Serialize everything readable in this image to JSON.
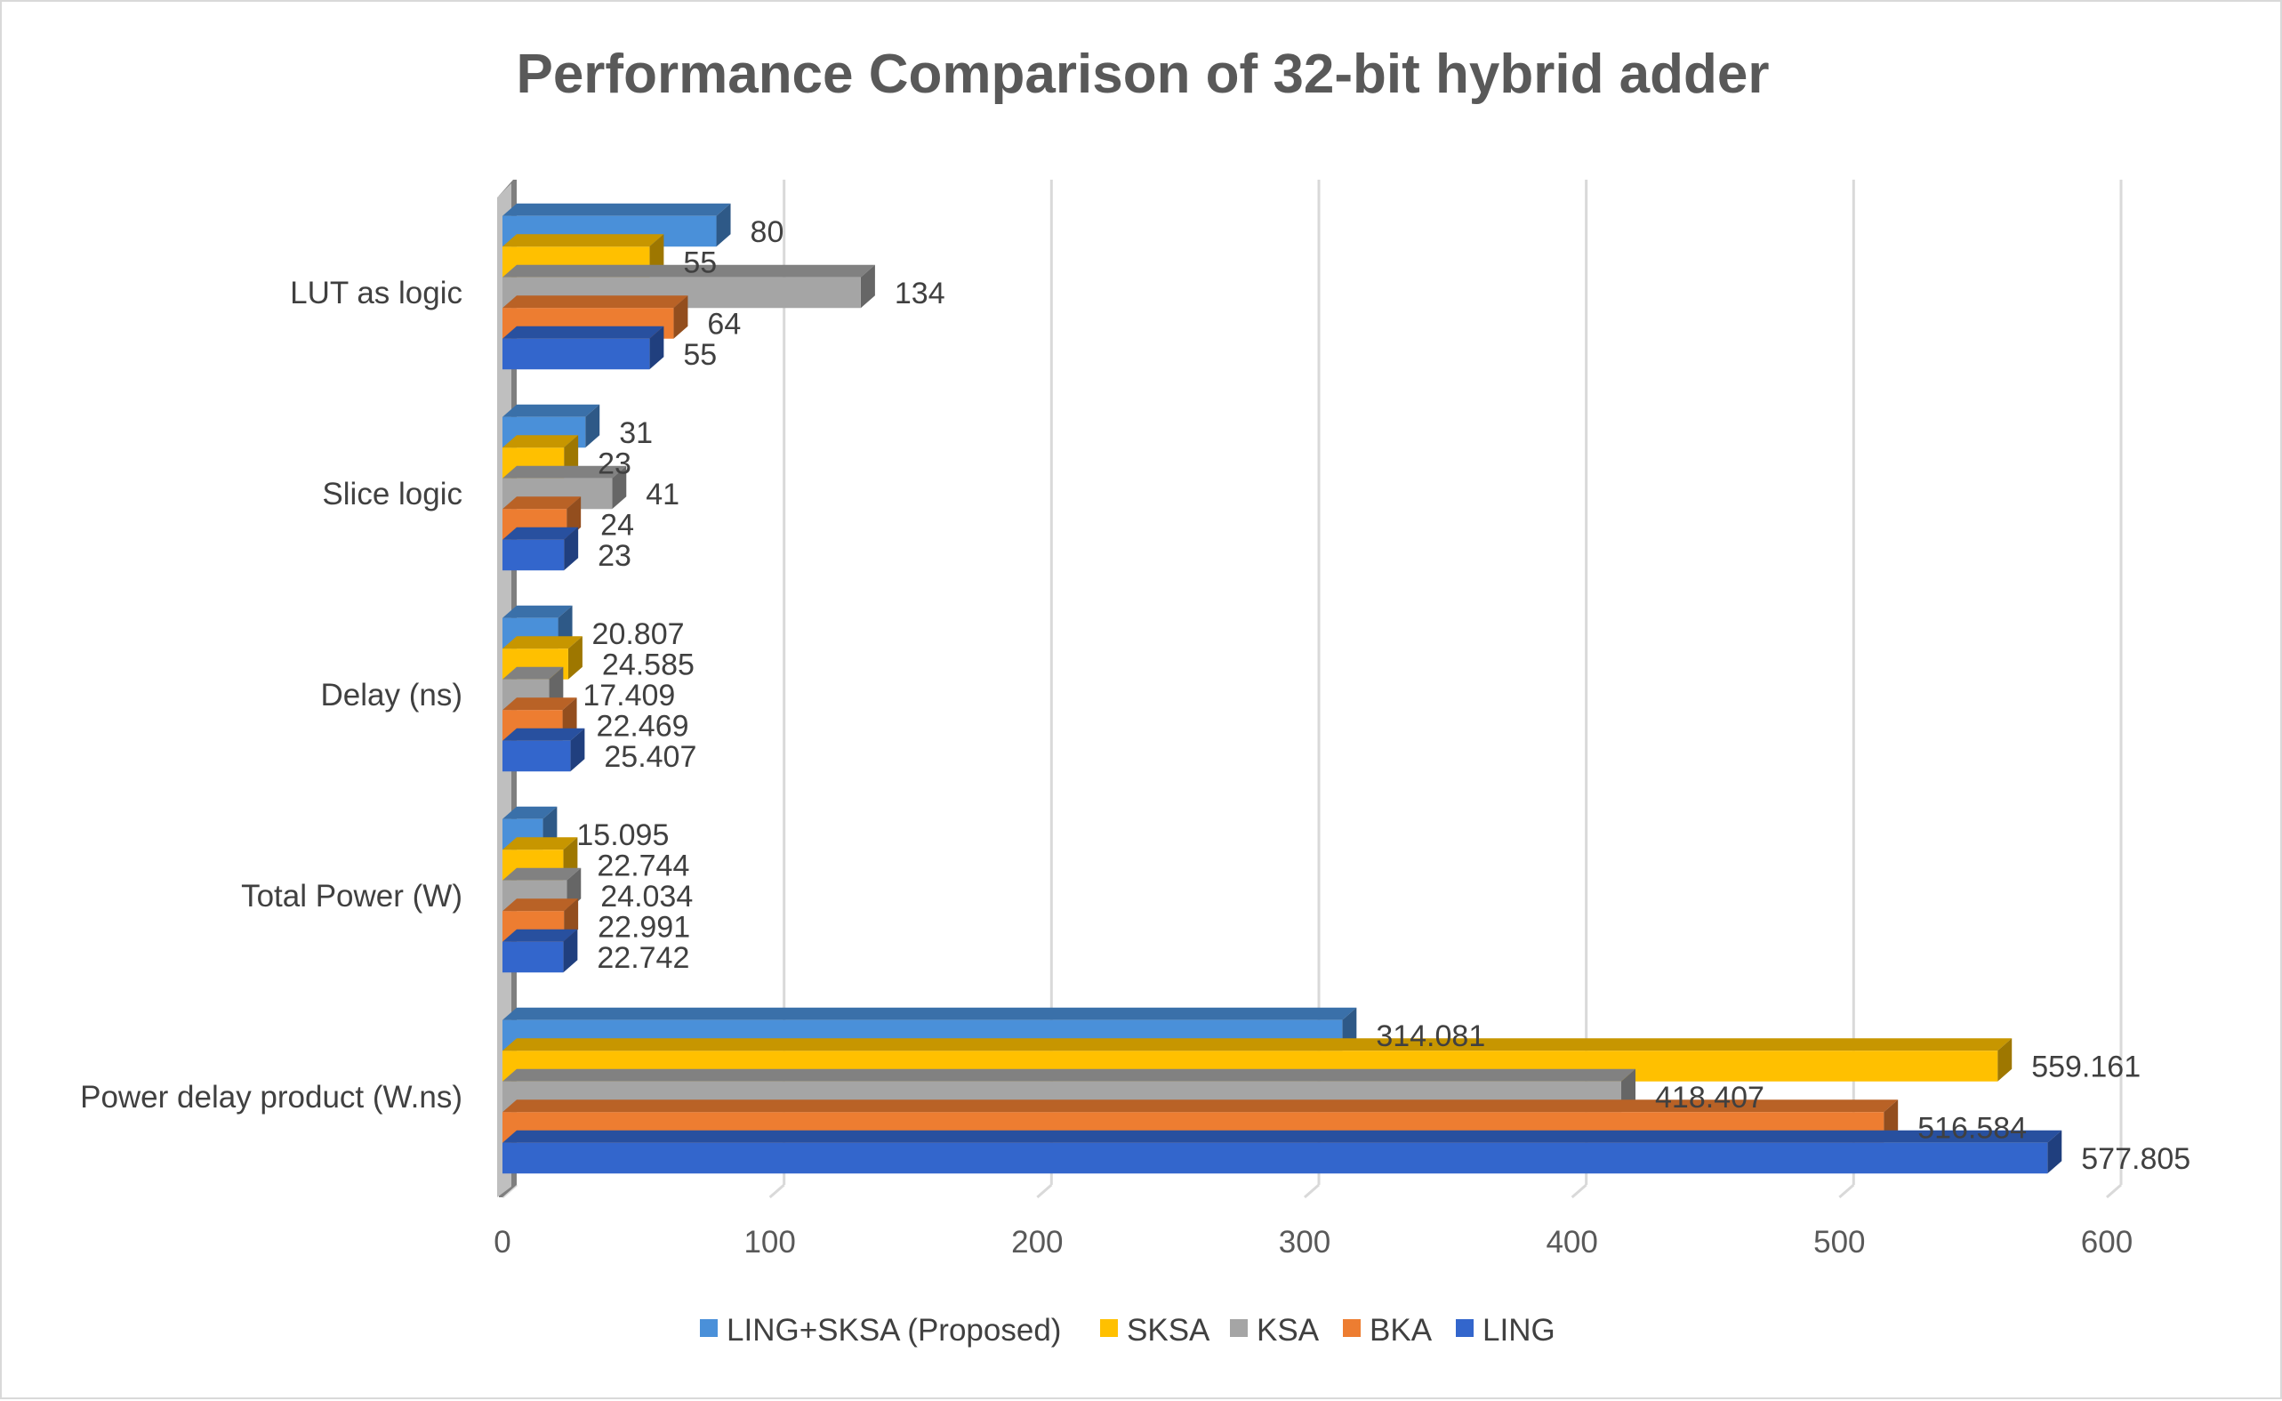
{
  "chart_data": {
    "type": "bar",
    "orientation": "horizontal",
    "title": "Performance Comparison of 32-bit hybrid adder",
    "categories": [
      "LUT as logic",
      "Slice logic",
      "Delay (ns)",
      "Total Power (W)",
      "Power delay product (W.ns)"
    ],
    "series": [
      {
        "name": "LING+SKSA (Proposed)",
        "color": "#4a90d9",
        "values": [
          80,
          31,
          20.807,
          15.095,
          314.081
        ],
        "labels": [
          "80",
          "31",
          "20.807",
          "15.095",
          "314.081"
        ]
      },
      {
        "name": "SKSA",
        "color": "#ffc000",
        "values": [
          55,
          23,
          24.585,
          22.744,
          559.161
        ],
        "labels": [
          "55",
          "23",
          "24.585",
          "22.744",
          "559.161"
        ]
      },
      {
        "name": "KSA",
        "color": "#a5a5a5",
        "values": [
          134,
          41,
          17.409,
          24.034,
          418.407
        ],
        "labels": [
          "134",
          "41",
          "17.409",
          "24.034",
          "418.407"
        ]
      },
      {
        "name": "BKA",
        "color": "#ed7d31",
        "values": [
          64,
          24,
          22.469,
          22.991,
          516.584
        ],
        "labels": [
          "64",
          "24",
          "22.469",
          "22.991",
          "516.584"
        ]
      },
      {
        "name": "LING",
        "color": "#3366cc",
        "values": [
          55,
          23,
          25.407,
          22.742,
          577.805
        ],
        "labels": [
          "55",
          "23",
          "25.407",
          "22.742",
          "577.805"
        ]
      }
    ],
    "xlim": [
      0,
      600
    ],
    "xticks": [
      "0",
      "100",
      "200",
      "300",
      "400",
      "500",
      "600"
    ],
    "grid": true,
    "legend_position": "bottom",
    "style": "3d-clustered-bar"
  }
}
